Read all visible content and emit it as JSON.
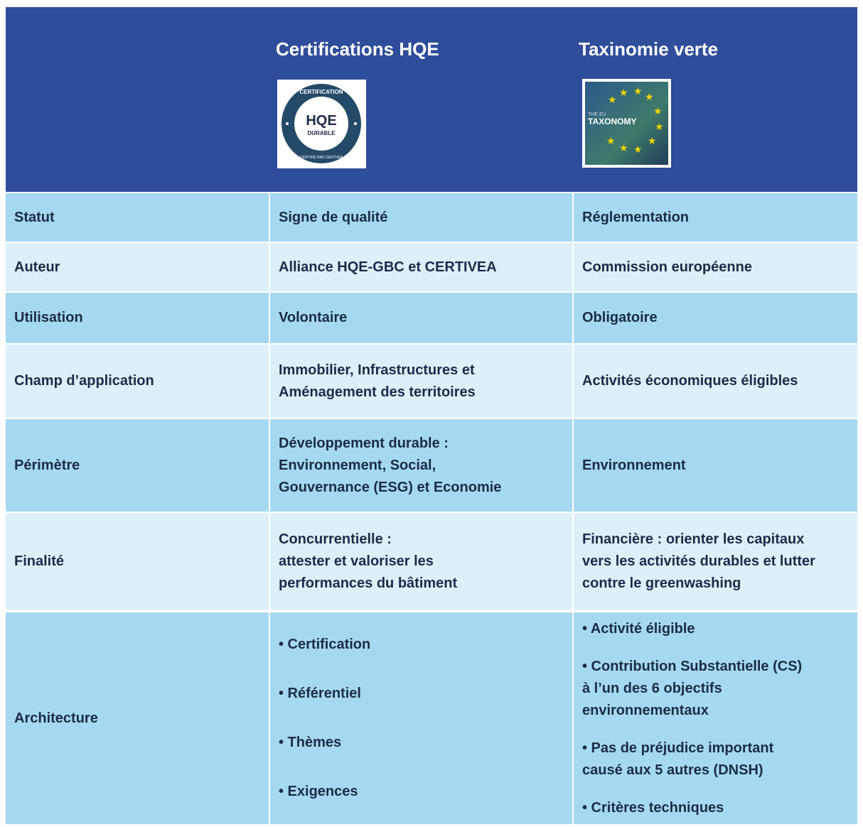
{
  "table": {
    "header": [
      "Certifications HQE",
      "Taxinomie verte"
    ],
    "hqe_logo": {
      "top": "CERTIFICATION",
      "main": "HQE",
      "sub": "DURABLE",
      "bottom": "CERTIFIÉ PAR CERTIVEA"
    },
    "eu_logo": {
      "small": "THE EU",
      "main": "TAXONOMY"
    },
    "rows": [
      {
        "label": "Statut",
        "cells": [
          [
            [
              "Signe de qualité"
            ]
          ],
          [
            [
              "Réglementation"
            ]
          ]
        ]
      },
      {
        "label": "Auteur",
        "cells": [
          [
            [
              "Alliance HQE-GBC et CERTIVEA"
            ]
          ],
          [
            [
              "Commission européenne"
            ]
          ]
        ]
      },
      {
        "label": "Utilisation",
        "cells": [
          [
            [
              "Volontaire"
            ]
          ],
          [
            [
              "Obligatoire"
            ]
          ]
        ]
      },
      {
        "label": "Champ d’application",
        "cells": [
          [
            [
              "Immobilier, Infrastructures et",
              "Aménagement des territoires"
            ]
          ],
          [
            [
              "Activités économiques éligibles"
            ]
          ]
        ]
      },
      {
        "label": "Périmètre",
        "cells": [
          [
            [
              "Développement durable :",
              "Environnement, Social,",
              "Gouvernance (ESG) et Economie"
            ]
          ],
          [
            [
              "Environnement"
            ]
          ]
        ]
      },
      {
        "label": "Finalité",
        "cells": [
          [
            [
              "Concurrentielle :",
              "attester et valoriser les",
              "performances du bâtiment"
            ]
          ],
          [
            [
              "Financière : orienter les capitaux",
              "vers les activités durables et lutter",
              "contre le greenwashing"
            ]
          ]
        ]
      },
      {
        "label": "Architecture",
        "cells": [
          [
            [
              "• Certification"
            ],
            [
              "• Référentiel"
            ],
            [
              "• Thèmes"
            ],
            [
              "• Exigences"
            ]
          ],
          [
            [
              "• Activité éligible"
            ],
            [
              "• Contribution Substantielle (CS)",
              "à l’un des 6 objectifs",
              "environnementaux"
            ],
            [
              "• Pas de préjudice important",
              "causé aux 5 autres (DNSH)"
            ],
            [
              "• Critères techniques"
            ]
          ]
        ]
      }
    ]
  }
}
